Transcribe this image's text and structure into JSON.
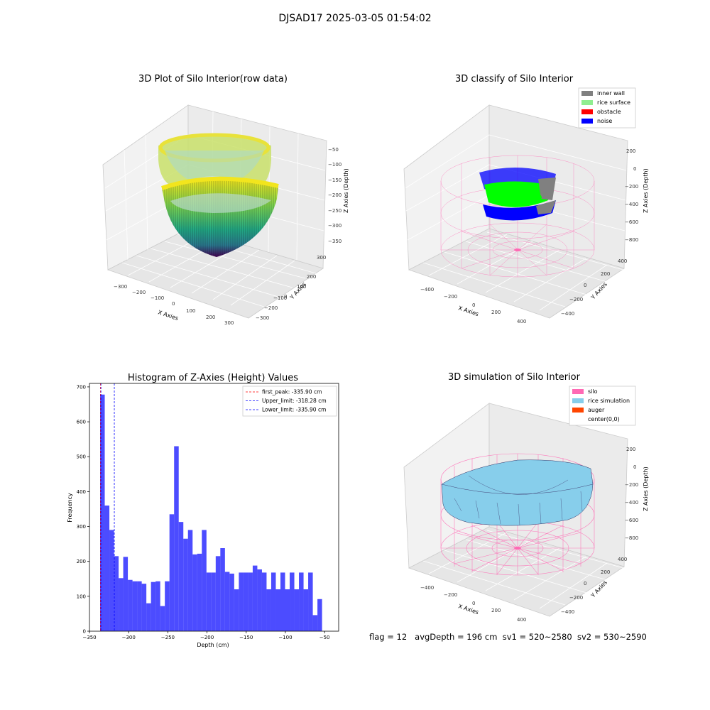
{
  "suptitle": "DJSAD17 2025-03-05 01:54:02",
  "panels": {
    "raw": {
      "title": "3D Plot of Silo Interior(row data)",
      "xlabel": "X Axies",
      "ylabel": "Y Axies",
      "zlabel": "Z Axies (Depth)",
      "xticks": [
        "−300",
        "−200",
        "−100",
        "0",
        "100",
        "200",
        "300"
      ],
      "yticks": [
        "−300",
        "−200",
        "−100",
        "0",
        "100",
        "200",
        "300"
      ],
      "zticks": [
        "−50",
        "−100",
        "−150",
        "−200",
        "−250",
        "−300",
        "−350"
      ]
    },
    "classify": {
      "title": "3D classify of Silo Interior",
      "xlabel": "X Axies",
      "ylabel": "Y Axies",
      "zlabel": "Z Axies (Depth)",
      "xticks": [
        "−400",
        "−200",
        "0",
        "200",
        "400"
      ],
      "yticks": [
        "−400",
        "−200",
        "0",
        "200",
        "400"
      ],
      "zticks": [
        "200",
        "0",
        "−200",
        "−400",
        "−600",
        "−800"
      ],
      "legend": [
        {
          "label": "inner wall",
          "color": "#808080"
        },
        {
          "label": "rice surface",
          "color": "#90ee90"
        },
        {
          "label": "obstacle",
          "color": "#ff0000"
        },
        {
          "label": "noise",
          "color": "#0000ff"
        }
      ]
    },
    "simulation": {
      "title": "3D simulation of Silo Interior",
      "xlabel": "X Axies",
      "ylabel": "Y Axies",
      "zlabel": "Z Axies (Depth)",
      "xticks": [
        "−400",
        "−200",
        "0",
        "200",
        "400"
      ],
      "yticks": [
        "−400",
        "−200",
        "0",
        "200",
        "400"
      ],
      "zticks": [
        "200",
        "0",
        "−200",
        "−400",
        "−600",
        "−800"
      ],
      "legend": [
        {
          "label": "silo",
          "color": "#ff69b4"
        },
        {
          "label": "rice simulation",
          "color": "#87ceeb"
        },
        {
          "label": "auger",
          "color": "#ff4500"
        },
        {
          "label": "center(0,0)",
          "color": "#ffffff"
        }
      ]
    }
  },
  "chart_data": {
    "type": "bar",
    "title": "Histogram of Z-Axies (Height) Values",
    "xlabel": "Depth (cm)",
    "ylabel": "Frequency",
    "xlim": [
      -350,
      -32
    ],
    "ylim": [
      0,
      710
    ],
    "xticks": [
      -350,
      -300,
      -250,
      -200,
      -150,
      -100,
      -50
    ],
    "yticks": [
      0,
      100,
      200,
      300,
      400,
      500,
      600,
      700
    ],
    "bin_start": -336.4,
    "bin_width": 5.9,
    "values": [
      678,
      360,
      290,
      215,
      152,
      213,
      147,
      143,
      143,
      136,
      80,
      141,
      143,
      72,
      143,
      335,
      530,
      313,
      265,
      290,
      220,
      222,
      290,
      168,
      168,
      215,
      238,
      170,
      165,
      120,
      168,
      168,
      168,
      188,
      177,
      168,
      120,
      168,
      120,
      168,
      120,
      168,
      120,
      168,
      120,
      168,
      46,
      92
    ],
    "bar_color": "#0000ff",
    "lines": [
      {
        "label": "first_peak: -335.90 cm",
        "x": -335.9,
        "color": "#ff0000"
      },
      {
        "label": "Upper_limit: -318.28 cm",
        "x": -318.28,
        "color": "#0000ff"
      },
      {
        "label": "Lower_limit: -335.90 cm",
        "x": -335.9,
        "color": "#0000ff"
      }
    ],
    "legend_position": "top-right"
  },
  "footer": {
    "flag": "flag = 12",
    "avg": "avgDepth = 196 cm",
    "sv1": "sv1 = 520~2580",
    "sv2": "sv2 = 530~2590"
  }
}
